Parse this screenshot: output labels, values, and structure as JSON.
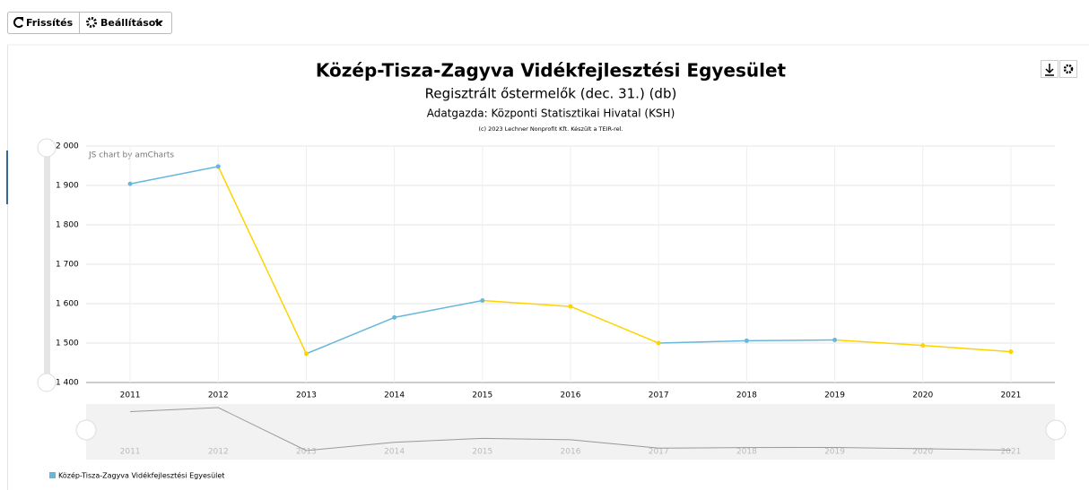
{
  "toolbar": {
    "refresh": "Frissítés",
    "settings": "Beállítások"
  },
  "chart_data": {
    "type": "line",
    "title": "Közép-Tisza-Zagyva Vidékfejlesztési Egyesület",
    "subtitle": "Regisztrált őstermelők (dec. 31.) (db)",
    "source": "Adatgazda: Központi Statisztikai Hivatal (KSH)",
    "copyright": "(c) 2023 Lechner Nonprofit Kft. Készült a TEIR-rel.",
    "credit": "JS chart by amCharts",
    "categories": [
      "2011",
      "2012",
      "2013",
      "2014",
      "2015",
      "2016",
      "2017",
      "2018",
      "2019",
      "2020",
      "2021"
    ],
    "series": [
      {
        "name": "Közép-Tisza-Zagyva Vidékfejlesztési Egyesület",
        "color": "#67b7dc",
        "values": [
          1904,
          1948,
          1473,
          1565,
          1608,
          1593,
          1500,
          1506,
          1508,
          1494,
          1478
        ],
        "point_colors": [
          "#67b7dc",
          "#67b7dc",
          "#fdd400",
          "#67b7dc",
          "#67b7dc",
          "#fdd400",
          "#fdd400",
          "#67b7dc",
          "#67b7dc",
          "#fdd400",
          "#fdd400"
        ]
      }
    ],
    "ylim": [
      1400,
      2000
    ],
    "yticks": [
      {
        "value": 1400,
        "label": "1 400"
      },
      {
        "value": 1500,
        "label": "1 500"
      },
      {
        "value": 1600,
        "label": "1 600"
      },
      {
        "value": 1700,
        "label": "1 700"
      },
      {
        "value": 1800,
        "label": "1 800"
      },
      {
        "value": 1900,
        "label": "1 900"
      },
      {
        "value": 2000,
        "label": "2 000"
      }
    ],
    "grid": true
  }
}
